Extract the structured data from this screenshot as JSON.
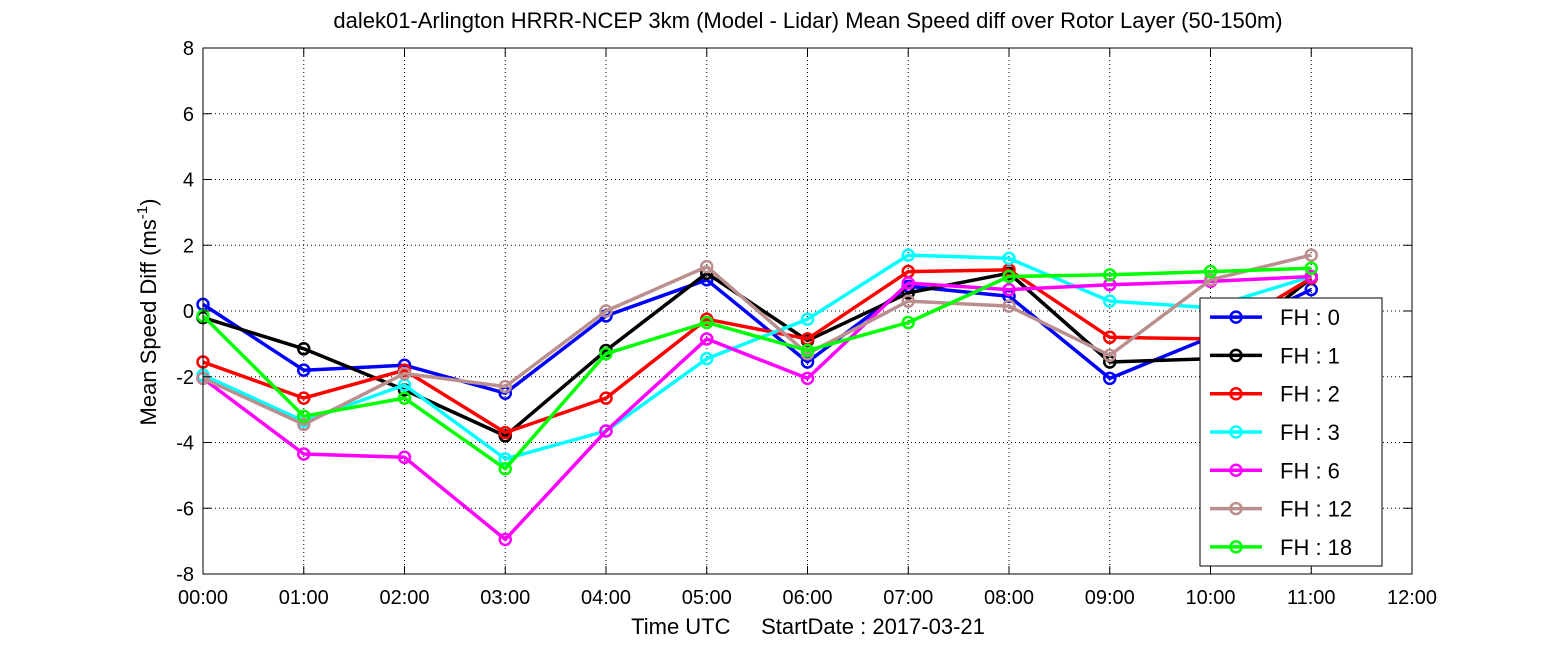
{
  "chart_data": {
    "type": "line",
    "title": "dalek01-Arlington HRRR-NCEP 3km (Model - Lidar) Mean Speed diff over Rotor Layer (50-150m)",
    "xlabel": "Time UTC     StartDate : 2017-03-21",
    "ylabel_main": "Mean Speed Diff (ms",
    "ylabel_sup": "-1",
    "ylabel_end": ")",
    "x_ticks": [
      "00:00",
      "01:00",
      "02:00",
      "03:00",
      "04:00",
      "05:00",
      "06:00",
      "07:00",
      "08:00",
      "09:00",
      "10:00",
      "11:00",
      "12:00"
    ],
    "y_ticks": [
      "-8",
      "-6",
      "-4",
      "-2",
      "0",
      "2",
      "4",
      "6",
      "8"
    ],
    "xlim": [
      0,
      12
    ],
    "ylim": [
      -8,
      8
    ],
    "grid": true,
    "legend_position": "right",
    "series": [
      {
        "name": "FH : 0",
        "color": "#0000ff",
        "x": [
          0,
          1,
          2,
          3,
          4,
          5,
          6,
          7,
          8,
          9,
          10,
          11
        ],
        "y": [
          0.2,
          -1.8,
          -1.65,
          -2.5,
          -0.15,
          0.95,
          -1.55,
          0.75,
          0.45,
          -2.05,
          -0.8,
          0.65
        ]
      },
      {
        "name": "FH : 1",
        "color": "#000000",
        "x": [
          0,
          1,
          2,
          3,
          4,
          5,
          6,
          7,
          8,
          9,
          10,
          11
        ],
        "y": [
          -0.2,
          -1.15,
          -2.4,
          -3.8,
          -1.2,
          1.15,
          -0.9,
          0.55,
          1.15,
          -1.55,
          -1.45,
          1.0
        ]
      },
      {
        "name": "FH : 2",
        "color": "#ff0000",
        "x": [
          0,
          1,
          2,
          3,
          4,
          5,
          6,
          7,
          8,
          9,
          10,
          11
        ],
        "y": [
          -1.55,
          -2.65,
          -1.8,
          -3.7,
          -2.65,
          -0.25,
          -0.85,
          1.2,
          1.25,
          -0.8,
          -0.85,
          1.0
        ]
      },
      {
        "name": "FH : 3",
        "color": "#00ffff",
        "x": [
          0,
          1,
          2,
          3,
          4,
          5,
          6,
          7,
          8,
          9,
          10,
          11
        ],
        "y": [
          -1.95,
          -3.35,
          -2.25,
          -4.5,
          -3.65,
          -1.45,
          -0.25,
          1.7,
          1.6,
          0.3,
          0.1,
          1.05
        ]
      },
      {
        "name": "FH : 6",
        "color": "#ff00ff",
        "x": [
          0,
          1,
          2,
          3,
          4,
          5,
          6,
          7,
          8,
          9,
          10,
          11
        ],
        "y": [
          -2.05,
          -4.35,
          -4.45,
          -6.95,
          -3.65,
          -0.85,
          -2.05,
          0.85,
          0.65,
          0.8,
          0.9,
          1.05
        ]
      },
      {
        "name": "FH : 12",
        "color": "#bc8f8f",
        "x": [
          0,
          1,
          2,
          3,
          4,
          5,
          6,
          7,
          8,
          9,
          10,
          11
        ],
        "y": [
          -2.05,
          -3.45,
          -1.9,
          -2.3,
          0.0,
          1.35,
          -1.3,
          0.3,
          0.15,
          -1.35,
          0.95,
          1.7
        ]
      },
      {
        "name": "FH : 18",
        "color": "#00ff00",
        "x": [
          0,
          1,
          2,
          3,
          4,
          5,
          6,
          7,
          8,
          9,
          10,
          11
        ],
        "y": [
          -0.15,
          -3.2,
          -2.65,
          -4.8,
          -1.3,
          -0.35,
          -1.2,
          -0.35,
          1.05,
          1.1,
          1.2,
          1.3
        ]
      }
    ]
  }
}
